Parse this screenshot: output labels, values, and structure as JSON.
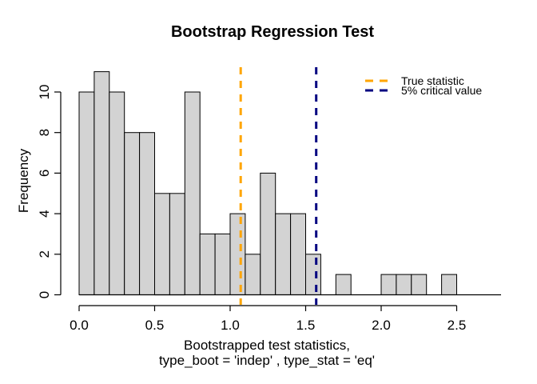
{
  "chart_data": {
    "type": "histogram",
    "title": "Bootstrap Regression Test",
    "x_label_line1": "Bootstrapped test statistics,",
    "x_label_line2": "type_boot = 'indep' , type_stat = 'eq'",
    "y_label": "Frequency",
    "bin_start": 0.0,
    "bin_width": 0.1,
    "frequencies": [
      10,
      11,
      10,
      8,
      8,
      5,
      5,
      10,
      3,
      3,
      4,
      2,
      6,
      4,
      4,
      2,
      0,
      1,
      0,
      0,
      1,
      1,
      1,
      0,
      1
    ],
    "total_count": 100,
    "xlim": [
      0.0,
      2.5
    ],
    "ylim": [
      0,
      11
    ],
    "x_ticks": [
      0.0,
      0.5,
      1.0,
      1.5,
      2.0,
      2.5
    ],
    "x_tick_labels": [
      "0.0",
      "0.5",
      "1.0",
      "1.5",
      "2.0",
      "2.5"
    ],
    "y_ticks": [
      0,
      2,
      4,
      6,
      8,
      10
    ],
    "y_tick_labels": [
      "0",
      "2",
      "4",
      "6",
      "8",
      "10"
    ],
    "bar_fill": "#d3d3d3",
    "bar_border": "#000000",
    "axis_color": "#000000",
    "grid": "off",
    "vlines": [
      {
        "name": "true-statistic-line",
        "x": 1.07,
        "color": "#ffa500",
        "style": "dashed",
        "label": "True statistic"
      },
      {
        "name": "critical-value-line",
        "x": 1.57,
        "color": "#000080",
        "style": "dashed",
        "label": "5% critical value"
      }
    ],
    "legend": {
      "position": "top-right",
      "entries": [
        {
          "label": "True statistic",
          "color": "#ffa500",
          "line_style": "dashed"
        },
        {
          "label": "5% critical value",
          "color": "#000080",
          "line_style": "dashed"
        }
      ]
    }
  }
}
